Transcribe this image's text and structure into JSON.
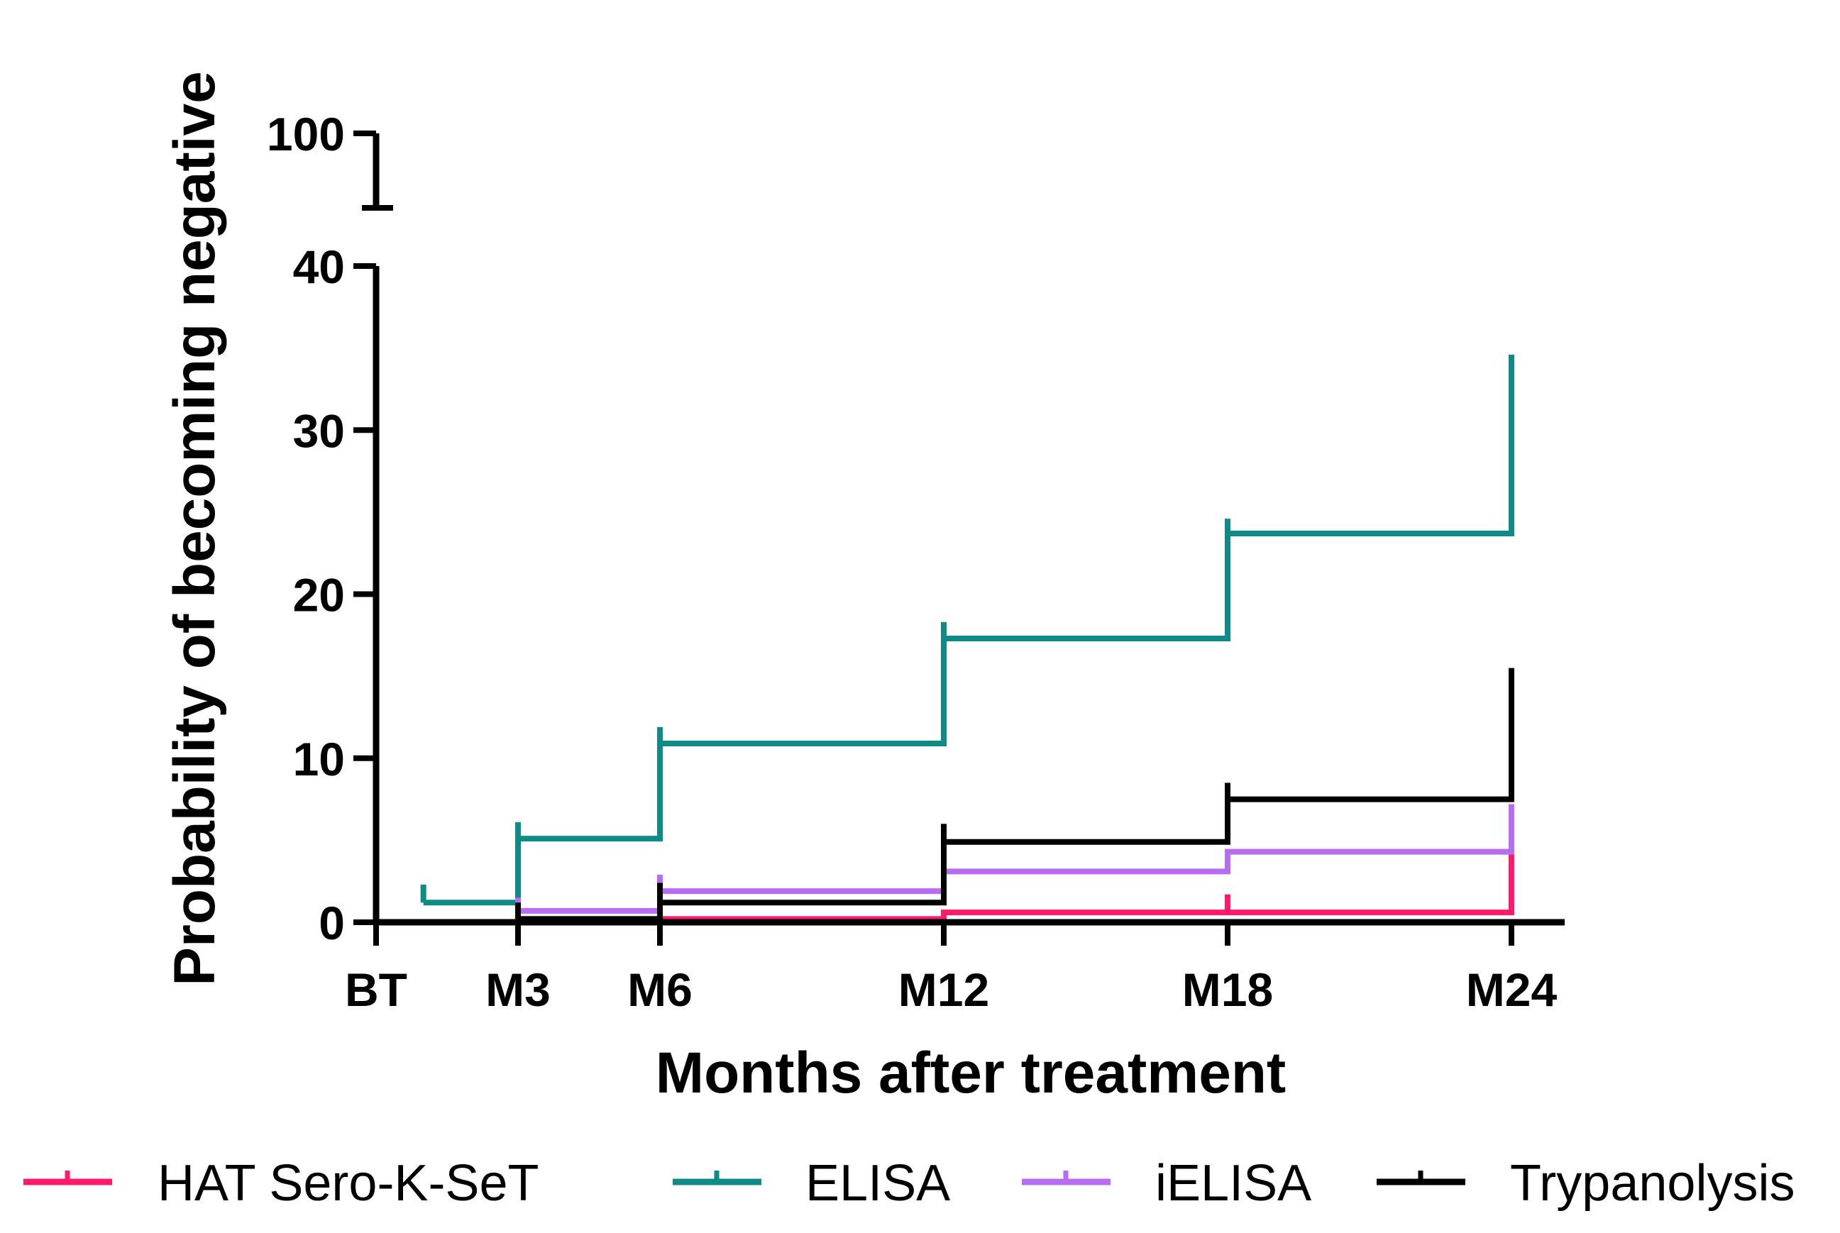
{
  "chart_data": {
    "type": "line",
    "subtype": "step",
    "title": "",
    "xlabel": "Months after treatment",
    "ylabel": "Probability of becoming negative",
    "categories": [
      "BT",
      "M3",
      "M6",
      "M12",
      "M18",
      "M24"
    ],
    "x_months": [
      0,
      3,
      6,
      12,
      18,
      24
    ],
    "y_ticks_lower": [
      0,
      10,
      20,
      30,
      40
    ],
    "y_tick_upper": 100,
    "ylim": [
      0,
      40
    ],
    "y_break": true,
    "grid": false,
    "legend_position": "bottom",
    "series": [
      {
        "name": "HAT Sero-K-SeT",
        "color": "#ff1a6b",
        "steps": [
          [
            3,
            0.2
          ],
          [
            6,
            0.2
          ],
          [
            12,
            0.6
          ],
          [
            18,
            0.6
          ],
          [
            24,
            0.6
          ]
        ],
        "end_rise": 4.2,
        "censor_marks": [
          [
            18,
            1.7
          ]
        ]
      },
      {
        "name": "ELISA",
        "color": "#0f8a86",
        "steps": [
          [
            1,
            1.2
          ],
          [
            3,
            5.1
          ],
          [
            6,
            10.9
          ],
          [
            12,
            17.3
          ],
          [
            18,
            23.7
          ],
          [
            24,
            23.7
          ]
        ],
        "end_rise": 34.6,
        "censor_marks": [
          [
            1,
            2.3
          ],
          [
            3,
            6.1
          ],
          [
            6,
            11.9
          ],
          [
            12,
            18.3
          ],
          [
            18,
            24.6
          ]
        ]
      },
      {
        "name": "iELISA",
        "color": "#b86cf0",
        "steps": [
          [
            3,
            0.7
          ],
          [
            6,
            1.9
          ],
          [
            12,
            3.1
          ],
          [
            18,
            4.3
          ],
          [
            24,
            4.3
          ]
        ],
        "end_rise": 7.2,
        "censor_marks": [
          [
            3,
            1.5
          ],
          [
            6,
            2.9
          ]
        ]
      },
      {
        "name": "Trypanolysis",
        "color": "#000000",
        "steps": [
          [
            3,
            0.2
          ],
          [
            6,
            1.2
          ],
          [
            12,
            4.9
          ],
          [
            18,
            7.5
          ],
          [
            24,
            7.5
          ]
        ],
        "end_rise": 15.5,
        "censor_marks": [
          [
            3,
            1.2
          ],
          [
            6,
            2.4
          ],
          [
            12,
            6.0
          ],
          [
            18,
            8.5
          ]
        ]
      }
    ]
  }
}
